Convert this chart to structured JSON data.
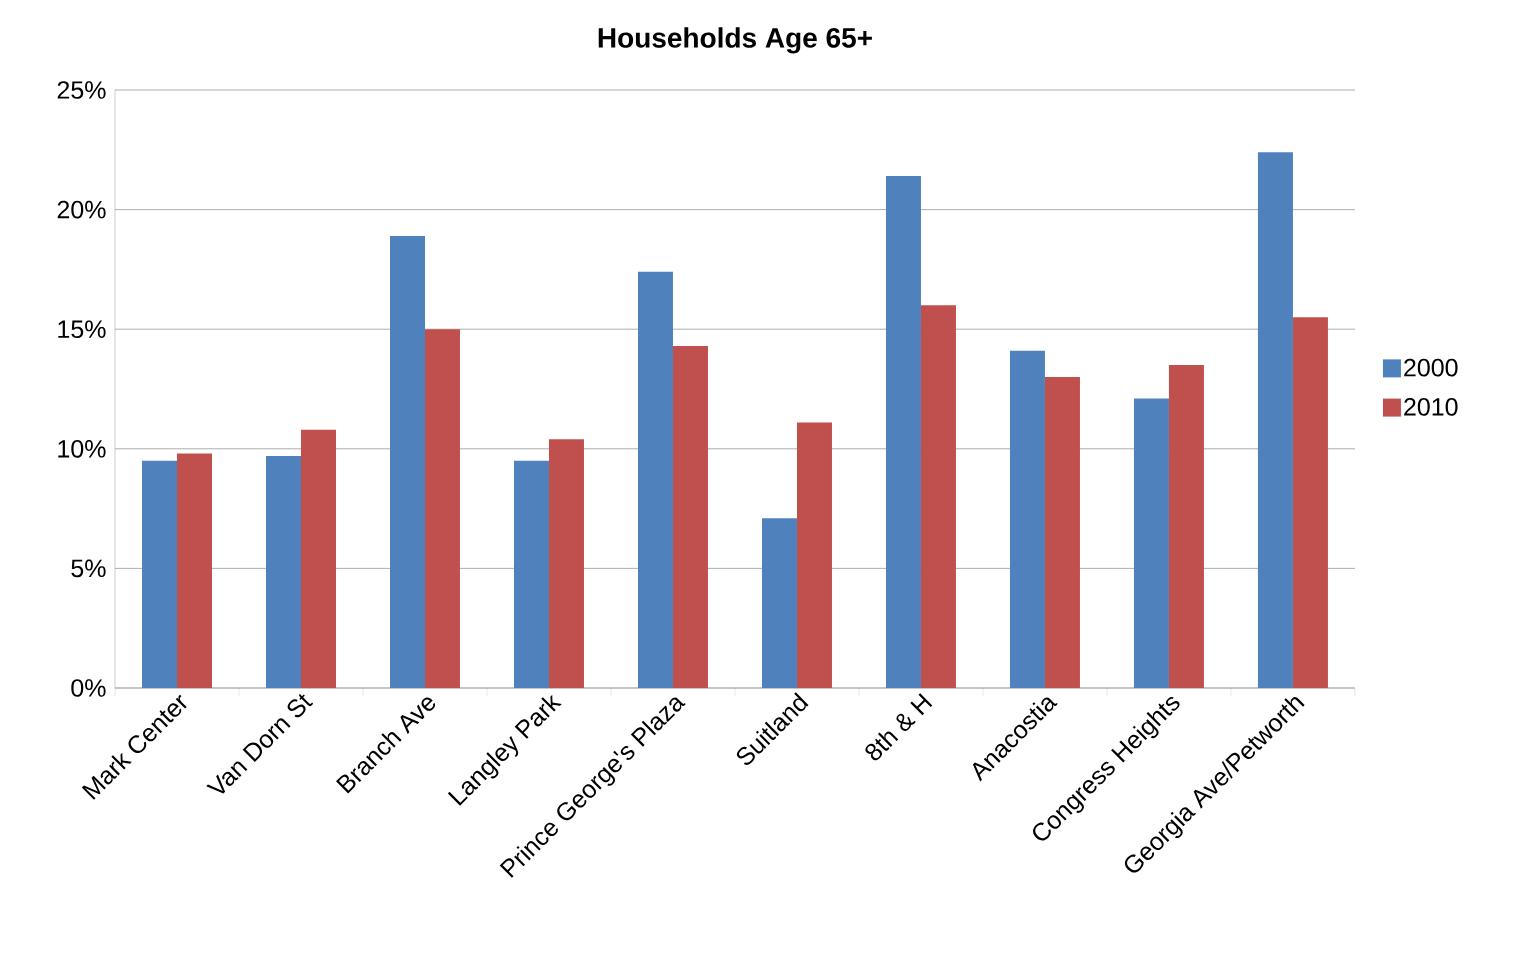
{
  "chart_data": {
    "type": "bar",
    "title": "Households Age 65+",
    "categories": [
      "Mark Center",
      "Van Dorn St",
      "Branch Ave",
      "Langley Park",
      "Prince George's Plaza",
      "Suitland",
      "8th & H",
      "Anacostia",
      "Congress Heights",
      "Georgia Ave/Petworth"
    ],
    "series": [
      {
        "name": "2000",
        "color": "#4f81bd",
        "values": [
          9.5,
          9.7,
          18.9,
          9.5,
          17.4,
          7.1,
          21.4,
          14.1,
          12.1,
          22.4
        ]
      },
      {
        "name": "2010",
        "color": "#c0504d",
        "values": [
          9.8,
          10.8,
          15.0,
          10.4,
          14.3,
          11.1,
          16.0,
          13.0,
          13.5,
          15.5
        ]
      }
    ],
    "ylim": [
      0,
      25
    ],
    "yticks": [
      {
        "value": 0,
        "label": "0%"
      },
      {
        "value": 5,
        "label": "5%"
      },
      {
        "value": 10,
        "label": "10%"
      },
      {
        "value": 15,
        "label": "15%"
      },
      {
        "value": 20,
        "label": "20%"
      },
      {
        "value": 25,
        "label": "25%"
      }
    ],
    "grid": "y",
    "legend": "right"
  }
}
